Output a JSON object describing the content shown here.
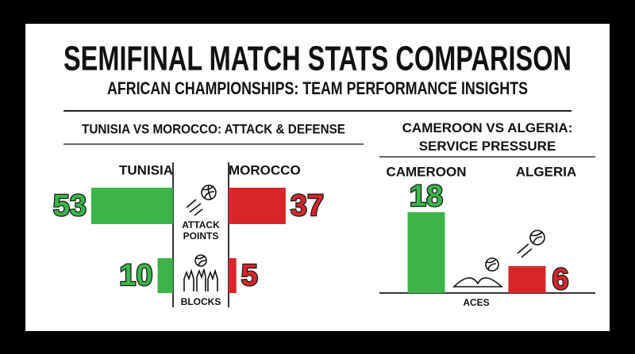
{
  "title": "SEMIFINAL MATCH STATS COMPARISON",
  "subtitle": "AFRICAN CHAMPIONSHIPS: TEAM PERFORMANCE INSIGHTS",
  "chart_data": [
    {
      "type": "butterfly",
      "title": "TUNISIA VS MOROCCO: ATTACK & DEFENSE",
      "categories": [
        "ATTACK POINTS",
        "BLOCKS"
      ],
      "series": [
        {
          "name": "TUNISIA",
          "color": "#3cb449",
          "values": [
            53,
            10
          ]
        },
        {
          "name": "MOROCCO",
          "color": "#d8262b",
          "values": [
            37,
            5
          ]
        }
      ]
    },
    {
      "type": "bar",
      "title": "CAMEROON VS ALGERIA: SERVICE PRESSURE",
      "categories": [
        "ACES"
      ],
      "series": [
        {
          "name": "CAMEROON",
          "color": "#3cb449",
          "values": [
            18
          ]
        },
        {
          "name": "ALGERIA",
          "color": "#d8262b",
          "values": [
            6
          ]
        }
      ]
    }
  ]
}
